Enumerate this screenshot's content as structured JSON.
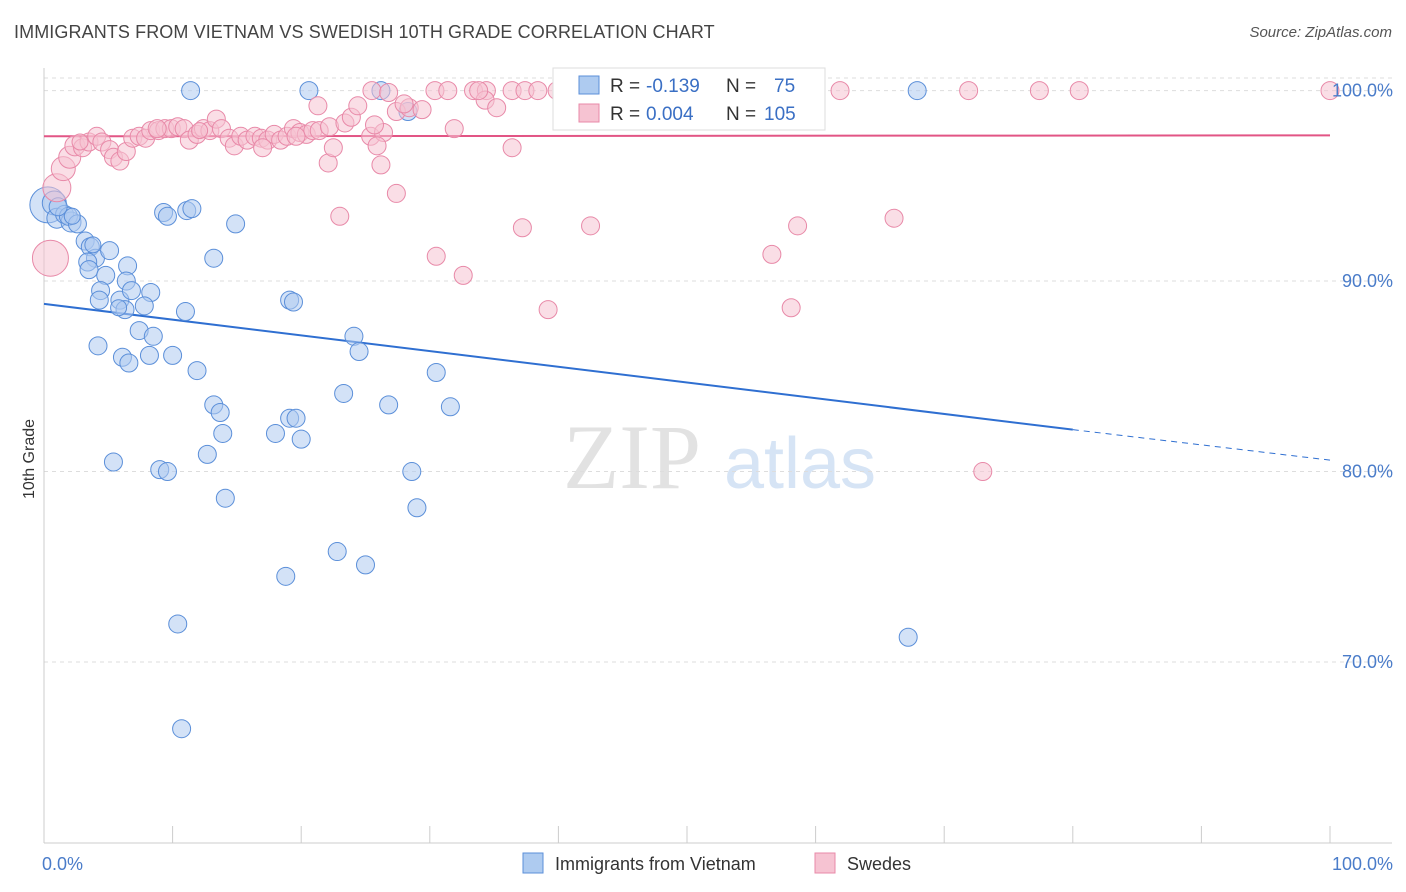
{
  "title": "IMMIGRANTS FROM VIETNAM VS SWEDISH 10TH GRADE CORRELATION CHART",
  "source": "Source: ZipAtlas.com",
  "watermark": {
    "zip": "ZIP",
    "atlas": "atlas"
  },
  "colors": {
    "blue": "#5b8fd9",
    "blue_fill": "#aecbf0",
    "blue_line": "#2f6fd1",
    "pink": "#e889a8",
    "pink_fill": "#f6c3d2",
    "pink_line": "#e25585",
    "grid": "#dddddd",
    "tick_text": "#4a7cc9"
  },
  "legend": {
    "rows": [
      {
        "r_label": "R =",
        "r_value": "-0.139",
        "n_label": "N =",
        "n_value": "75",
        "series": "blue"
      },
      {
        "r_label": "R =",
        "r_value": "0.004",
        "n_label": "N =",
        "n_value": "105",
        "series": "pink"
      }
    ]
  },
  "bottom_legend": [
    "Immigrants from Vietnam",
    "Swedes"
  ],
  "chart_data": {
    "type": "scatter",
    "title": "IMMIGRANTS FROM VIETNAM VS SWEDISH 10TH GRADE CORRELATION CHART",
    "xlabel": "",
    "ylabel": "10th Grade",
    "xlim": [
      0,
      100
    ],
    "ylim": [
      60.5,
      101.5
    ],
    "x_tick_labels": [
      "0.0%",
      "100.0%"
    ],
    "y_ticks": [
      70,
      80,
      90,
      100
    ],
    "y_tick_labels": [
      "70.0%",
      "80.0%",
      "90.0%",
      "100.0%"
    ],
    "grid": true,
    "legend_position": "top-center",
    "series": [
      {
        "name": "Immigrants from Vietnam",
        "color": "blue",
        "trend": {
          "x0": 0,
          "y0": 88.8,
          "x1": 80,
          "y1": 82.2,
          "dash_to_x": 100,
          "dash_to_y": 80.6
        },
        "points": [
          [
            0.3,
            94.0,
            18
          ],
          [
            0.8,
            94.1,
            12
          ],
          [
            1.0,
            93.3,
            10
          ],
          [
            1.6,
            93.5,
            9
          ],
          [
            2.1,
            93.1,
            10
          ],
          [
            1.9,
            93.4,
            9
          ],
          [
            2.6,
            93.0,
            9
          ],
          [
            3.2,
            92.1,
            9
          ],
          [
            3.6,
            91.8,
            9
          ],
          [
            4.0,
            91.2,
            9
          ],
          [
            3.8,
            91.9,
            8
          ],
          [
            5.1,
            91.6,
            9
          ],
          [
            3.4,
            91.0,
            9
          ],
          [
            3.5,
            90.6,
            9
          ],
          [
            4.8,
            90.3,
            9
          ],
          [
            6.5,
            90.8,
            9
          ],
          [
            6.4,
            90.0,
            9
          ],
          [
            4.4,
            89.5,
            9
          ],
          [
            5.9,
            89.0,
            9
          ],
          [
            6.8,
            89.5,
            9
          ],
          [
            8.3,
            89.4,
            9
          ],
          [
            7.8,
            88.7,
            9
          ],
          [
            6.3,
            88.5,
            9
          ],
          [
            4.3,
            89.0,
            9
          ],
          [
            11.0,
            88.4,
            9
          ],
          [
            7.4,
            87.4,
            9
          ],
          [
            8.5,
            87.1,
            9
          ],
          [
            4.2,
            86.6,
            9
          ],
          [
            6.1,
            86.0,
            9
          ],
          [
            6.6,
            85.7,
            9
          ],
          [
            8.2,
            86.1,
            9
          ],
          [
            10.0,
            86.1,
            9
          ],
          [
            11.9,
            85.3,
            9
          ],
          [
            13.2,
            83.5,
            9
          ],
          [
            13.7,
            83.1,
            9
          ],
          [
            13.9,
            82.0,
            9
          ],
          [
            12.7,
            80.9,
            9
          ],
          [
            9.0,
            80.1,
            9
          ],
          [
            9.6,
            80.0,
            9
          ],
          [
            14.1,
            78.6,
            9
          ],
          [
            5.4,
            80.5,
            9
          ],
          [
            18.0,
            82.0,
            9
          ],
          [
            19.1,
            82.8,
            9
          ],
          [
            19.6,
            82.8,
            9
          ],
          [
            20.0,
            81.7,
            9
          ],
          [
            18.8,
            74.5,
            9
          ],
          [
            22.8,
            75.8,
            9
          ],
          [
            10.4,
            72.0,
            9
          ],
          [
            10.7,
            66.5,
            9
          ],
          [
            11.1,
            93.7,
            9
          ],
          [
            11.5,
            93.8,
            9
          ],
          [
            9.3,
            93.6,
            9
          ],
          [
            9.6,
            93.4,
            9
          ],
          [
            14.9,
            93.0,
            9
          ],
          [
            13.2,
            91.2,
            9
          ],
          [
            19.1,
            89.0,
            9
          ],
          [
            19.4,
            88.9,
            9
          ],
          [
            23.3,
            84.1,
            9
          ],
          [
            24.1,
            87.1,
            9
          ],
          [
            24.5,
            86.3,
            9
          ],
          [
            26.8,
            83.5,
            9
          ],
          [
            30.5,
            85.2,
            9
          ],
          [
            31.6,
            83.4,
            9
          ],
          [
            28.6,
            80.0,
            9
          ],
          [
            29.0,
            78.1,
            9
          ],
          [
            25.0,
            75.1,
            9
          ],
          [
            11.4,
            100.0,
            9
          ],
          [
            20.6,
            100.0,
            9
          ],
          [
            26.2,
            100.0,
            9
          ],
          [
            28.3,
            98.9,
            9
          ],
          [
            67.2,
            71.3,
            9
          ],
          [
            67.9,
            100.0,
            9
          ],
          [
            1.1,
            93.9,
            9
          ],
          [
            2.2,
            93.4,
            8
          ],
          [
            5.8,
            88.6,
            8
          ]
        ]
      },
      {
        "name": "Swedes",
        "color": "pink",
        "trend": {
          "x0": 0,
          "y0": 97.6,
          "x1": 100,
          "y1": 97.65
        },
        "points": [
          [
            0.5,
            91.2,
            18
          ],
          [
            1.0,
            94.9,
            14
          ],
          [
            1.5,
            95.9,
            12
          ],
          [
            2.0,
            96.5,
            11
          ],
          [
            2.4,
            97.1,
            10
          ],
          [
            3.0,
            97.0,
            9
          ],
          [
            3.5,
            97.3,
            9
          ],
          [
            4.1,
            97.6,
            9
          ],
          [
            4.5,
            97.3,
            9
          ],
          [
            5.1,
            96.9,
            9
          ],
          [
            5.4,
            96.5,
            9
          ],
          [
            5.9,
            96.3,
            9
          ],
          [
            6.4,
            96.8,
            9
          ],
          [
            6.9,
            97.5,
            9
          ],
          [
            7.4,
            97.6,
            9
          ],
          [
            7.9,
            97.5,
            9
          ],
          [
            8.3,
            97.9,
            9
          ],
          [
            8.9,
            97.9,
            9
          ],
          [
            9.4,
            98.0,
            9
          ],
          [
            9.9,
            98.0,
            9
          ],
          [
            10.4,
            98.1,
            9
          ],
          [
            10.9,
            98.0,
            9
          ],
          [
            11.3,
            97.4,
            9
          ],
          [
            11.9,
            97.7,
            9
          ],
          [
            12.4,
            98.0,
            9
          ],
          [
            12.9,
            97.9,
            9
          ],
          [
            13.4,
            98.5,
            9
          ],
          [
            13.8,
            98.0,
            9
          ],
          [
            14.4,
            97.5,
            9
          ],
          [
            14.8,
            97.1,
            9
          ],
          [
            15.3,
            97.6,
            9
          ],
          [
            15.8,
            97.4,
            9
          ],
          [
            16.4,
            97.6,
            9
          ],
          [
            16.9,
            97.5,
            9
          ],
          [
            17.4,
            97.4,
            9
          ],
          [
            17.9,
            97.7,
            9
          ],
          [
            18.4,
            97.4,
            9
          ],
          [
            18.9,
            97.6,
            9
          ],
          [
            19.4,
            98.0,
            9
          ],
          [
            19.9,
            97.8,
            9
          ],
          [
            20.4,
            97.7,
            9
          ],
          [
            20.9,
            97.9,
            9
          ],
          [
            21.4,
            97.9,
            9
          ],
          [
            22.2,
            98.1,
            9
          ],
          [
            23.4,
            98.3,
            9
          ],
          [
            23.9,
            98.6,
            9
          ],
          [
            24.4,
            99.2,
            9
          ],
          [
            25.4,
            97.6,
            9
          ],
          [
            26.4,
            97.8,
            9
          ],
          [
            25.9,
            97.1,
            9
          ],
          [
            25.7,
            98.2,
            9
          ],
          [
            27.4,
            98.9,
            9
          ],
          [
            28.4,
            99.1,
            9
          ],
          [
            29.4,
            99.0,
            9
          ],
          [
            25.5,
            100.0,
            9
          ],
          [
            26.8,
            99.9,
            9
          ],
          [
            30.4,
            100.0,
            9
          ],
          [
            31.4,
            100.0,
            9
          ],
          [
            33.4,
            100.0,
            9
          ],
          [
            34.4,
            100.0,
            9
          ],
          [
            36.4,
            100.0,
            9
          ],
          [
            37.4,
            100.0,
            9
          ],
          [
            38.4,
            100.0,
            9
          ],
          [
            39.9,
            100.0,
            9
          ],
          [
            40.4,
            99.7,
            9
          ],
          [
            41.9,
            100.0,
            9
          ],
          [
            43.4,
            100.0,
            9
          ],
          [
            44.9,
            100.0,
            9
          ],
          [
            47.4,
            100.0,
            9
          ],
          [
            49.9,
            100.0,
            9
          ],
          [
            52.4,
            100.0,
            9
          ],
          [
            54.9,
            100.0,
            9
          ],
          [
            58.4,
            100.0,
            9
          ],
          [
            61.9,
            100.0,
            9
          ],
          [
            71.9,
            100.0,
            9
          ],
          [
            77.4,
            100.0,
            9
          ],
          [
            80.5,
            100.0,
            9
          ],
          [
            100.0,
            100.0,
            9
          ],
          [
            21.3,
            99.2,
            9
          ],
          [
            22.1,
            96.2,
            9
          ],
          [
            22.5,
            97.0,
            9
          ],
          [
            26.2,
            96.1,
            9
          ],
          [
            27.4,
            94.6,
            9
          ],
          [
            28.0,
            99.3,
            9
          ],
          [
            31.9,
            98.0,
            9
          ],
          [
            34.3,
            99.5,
            9
          ],
          [
            35.2,
            99.1,
            9
          ],
          [
            36.4,
            97.0,
            9
          ],
          [
            33.8,
            100.0,
            9
          ],
          [
            23.0,
            93.4,
            9
          ],
          [
            30.5,
            91.3,
            9
          ],
          [
            32.6,
            90.3,
            9
          ],
          [
            37.2,
            92.8,
            9
          ],
          [
            39.2,
            88.5,
            9
          ],
          [
            42.5,
            92.9,
            9
          ],
          [
            56.6,
            91.4,
            9
          ],
          [
            58.1,
            88.6,
            9
          ],
          [
            58.6,
            92.9,
            9
          ],
          [
            66.1,
            93.3,
            9
          ],
          [
            73.0,
            80.0,
            9
          ],
          [
            17.0,
            97.0,
            9
          ],
          [
            19.6,
            97.6,
            9
          ],
          [
            8.8,
            98.0,
            9
          ],
          [
            12.1,
            97.9,
            8
          ],
          [
            2.8,
            97.3,
            8
          ]
        ]
      }
    ]
  }
}
